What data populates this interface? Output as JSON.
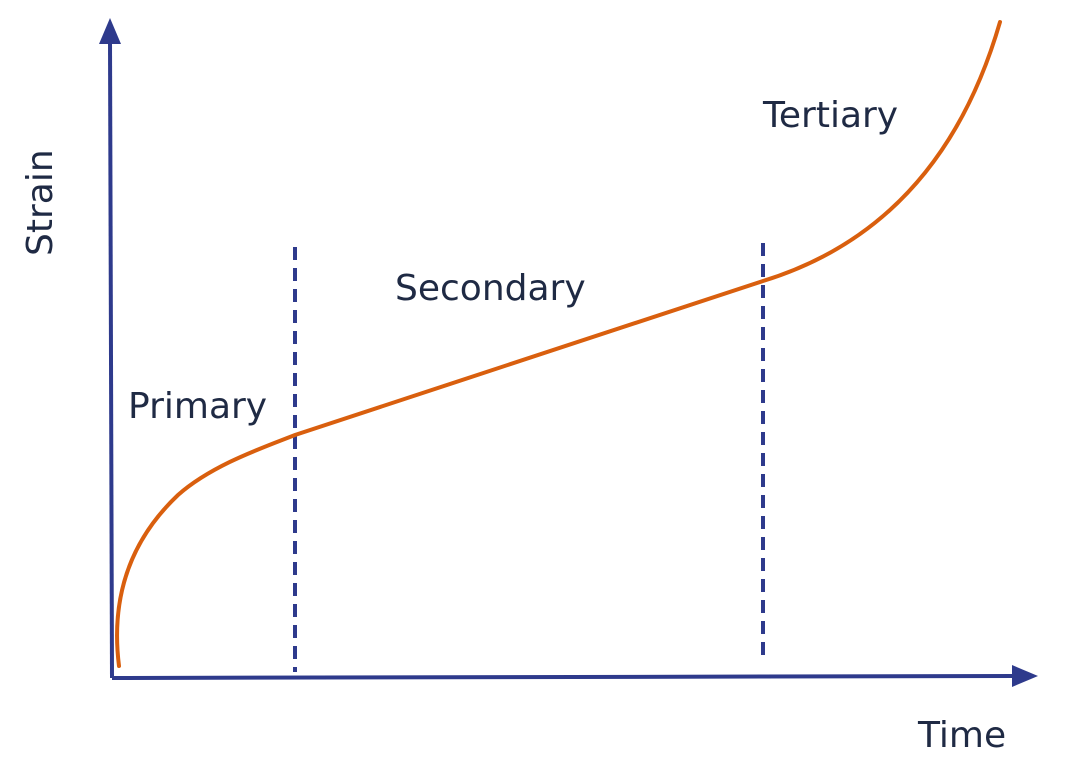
{
  "diagram": {
    "x_axis_label": "Time",
    "y_axis_label": "Strain",
    "regions": {
      "primary": "Primary",
      "secondary": "Secondary",
      "tertiary": "Tertiary"
    }
  },
  "colors": {
    "axes": "#2e3a8c",
    "curve": "#d95f0e",
    "boundary": "#2e3a8c",
    "text": "#1f2a44"
  }
}
